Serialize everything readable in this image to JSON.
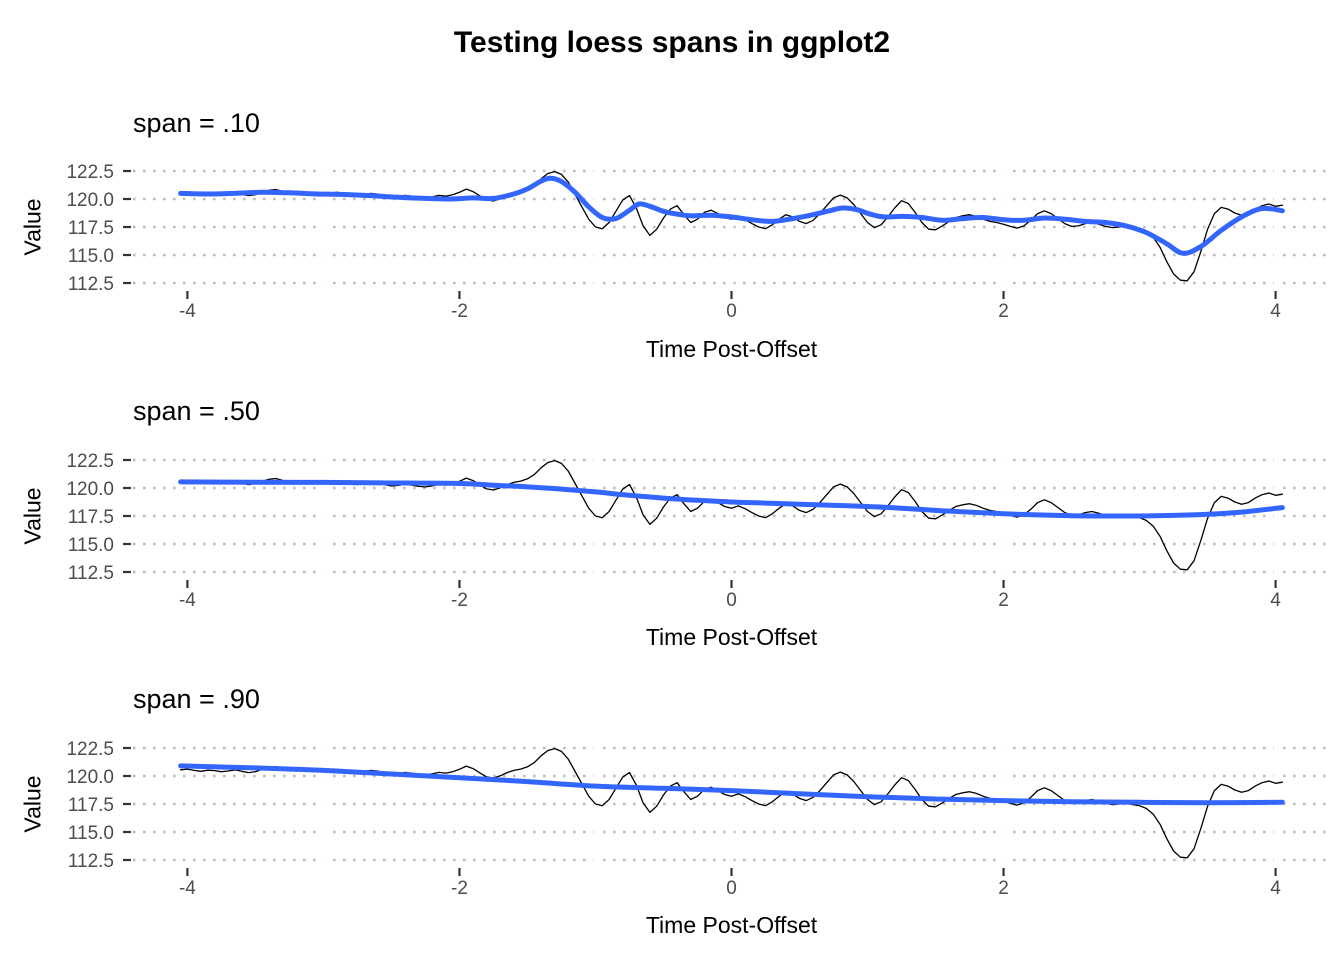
{
  "chart_data": {
    "type": "line",
    "title": "Testing loess spans in ggplot2",
    "xlabel": "Time Post-Offset",
    "ylabel": "Value",
    "xlim": [
      -4.4,
      4.4
    ],
    "ylim": [
      112.2,
      122.95
    ],
    "xticks": [
      {
        "value": -4,
        "label": "-4"
      },
      {
        "value": -2,
        "label": "-2"
      },
      {
        "value": 0,
        "label": "0"
      },
      {
        "value": 2,
        "label": "2"
      },
      {
        "value": 4,
        "label": "4"
      }
    ],
    "xminor": [
      -3,
      -1,
      1,
      3
    ],
    "yticks": [
      {
        "value": 112.5,
        "label": "112.5"
      },
      {
        "value": 115.0,
        "label": "115.0"
      },
      {
        "value": 117.5,
        "label": "117.5"
      },
      {
        "value": 120.0,
        "label": "120.0"
      },
      {
        "value": 122.5,
        "label": "122.5"
      }
    ],
    "grid": "dotted horizontal major gridlines, gaps at x tick columns",
    "legend": "none",
    "colors": {
      "raw_line": "#000000",
      "smooth_line": "#3366FF",
      "grid_dots": "#bdbdbd",
      "tick_marks": "#333333",
      "tick_labels": "#4d4d4d",
      "background": "#ffffff"
    },
    "raw_series": {
      "name": "raw noisy signal (same in all panels)",
      "x_start": -4.05,
      "x_step": 0.05,
      "y": [
        120.55,
        120.62,
        120.5,
        120.42,
        120.52,
        120.48,
        120.38,
        120.45,
        120.55,
        120.42,
        120.3,
        120.38,
        120.6,
        120.78,
        120.85,
        120.68,
        120.5,
        120.44,
        120.52,
        120.56,
        120.48,
        120.42,
        120.52,
        120.6,
        120.48,
        120.34,
        120.3,
        120.42,
        120.5,
        120.44,
        120.3,
        120.18,
        120.24,
        120.32,
        120.26,
        120.14,
        120.1,
        120.2,
        120.32,
        120.26,
        120.38,
        120.6,
        120.88,
        120.66,
        120.28,
        119.92,
        119.82,
        120.02,
        120.3,
        120.5,
        120.62,
        120.82,
        121.2,
        121.8,
        122.28,
        122.45,
        122.2,
        121.5,
        120.4,
        119.3,
        118.2,
        117.5,
        117.35,
        117.9,
        118.9,
        119.9,
        120.3,
        119.2,
        117.6,
        116.75,
        117.3,
        118.3,
        119.1,
        119.4,
        118.6,
        117.9,
        118.2,
        118.8,
        119.0,
        118.7,
        118.35,
        118.2,
        118.4,
        118.15,
        117.8,
        117.5,
        117.35,
        117.7,
        118.2,
        118.6,
        118.4,
        118.0,
        117.8,
        118.1,
        118.7,
        119.4,
        120.1,
        120.35,
        120.1,
        119.5,
        118.7,
        117.9,
        117.45,
        117.7,
        118.4,
        119.2,
        119.85,
        119.6,
        118.8,
        117.9,
        117.3,
        117.25,
        117.6,
        118.0,
        118.35,
        118.5,
        118.6,
        118.45,
        118.2,
        118.0,
        117.9,
        117.75,
        117.55,
        117.4,
        117.6,
        118.1,
        118.7,
        118.95,
        118.7,
        118.25,
        117.8,
        117.55,
        117.6,
        117.8,
        117.9,
        117.75,
        117.55,
        117.45,
        117.5,
        117.55,
        117.45,
        117.35,
        117.1,
        116.6,
        115.7,
        114.4,
        113.3,
        112.75,
        112.7,
        113.5,
        115.3,
        117.3,
        118.7,
        119.25,
        119.1,
        118.75,
        118.55,
        118.7,
        119.1,
        119.4,
        119.55,
        119.35,
        119.45
      ]
    },
    "panels": [
      {
        "label": "span = .10",
        "span": 0.1,
        "xlabel": "Time Post-Offset",
        "ylabel": "Value",
        "smooth": {
          "name": "loess span 0.10",
          "points": [
            [
              -4.05,
              120.5
            ],
            [
              -3.85,
              120.45
            ],
            [
              -3.65,
              120.5
            ],
            [
              -3.45,
              120.6
            ],
            [
              -3.25,
              120.55
            ],
            [
              -3.05,
              120.45
            ],
            [
              -2.85,
              120.4
            ],
            [
              -2.65,
              120.3
            ],
            [
              -2.45,
              120.15
            ],
            [
              -2.25,
              120.05
            ],
            [
              -2.05,
              120.0
            ],
            [
              -1.9,
              120.1
            ],
            [
              -1.75,
              120.05
            ],
            [
              -1.6,
              120.45
            ],
            [
              -1.5,
              120.9
            ],
            [
              -1.4,
              121.6
            ],
            [
              -1.33,
              121.85
            ],
            [
              -1.25,
              121.55
            ],
            [
              -1.15,
              120.6
            ],
            [
              -1.05,
              119.3
            ],
            [
              -0.95,
              118.35
            ],
            [
              -0.85,
              118.25
            ],
            [
              -0.75,
              119.0
            ],
            [
              -0.68,
              119.55
            ],
            [
              -0.6,
              119.35
            ],
            [
              -0.5,
              118.9
            ],
            [
              -0.4,
              118.65
            ],
            [
              -0.3,
              118.5
            ],
            [
              -0.15,
              118.55
            ],
            [
              0.0,
              118.4
            ],
            [
              0.15,
              118.15
            ],
            [
              0.3,
              118.0
            ],
            [
              0.45,
              118.25
            ],
            [
              0.6,
              118.6
            ],
            [
              0.72,
              118.95
            ],
            [
              0.82,
              119.2
            ],
            [
              0.92,
              119.05
            ],
            [
              1.02,
              118.65
            ],
            [
              1.12,
              118.4
            ],
            [
              1.25,
              118.45
            ],
            [
              1.4,
              118.35
            ],
            [
              1.55,
              118.1
            ],
            [
              1.7,
              118.25
            ],
            [
              1.85,
              118.35
            ],
            [
              2.0,
              118.15
            ],
            [
              2.15,
              118.1
            ],
            [
              2.3,
              118.3
            ],
            [
              2.45,
              118.2
            ],
            [
              2.6,
              118.0
            ],
            [
              2.75,
              117.9
            ],
            [
              2.9,
              117.6
            ],
            [
              3.05,
              117.0
            ],
            [
              3.2,
              116.0
            ],
            [
              3.32,
              115.15
            ],
            [
              3.45,
              115.75
            ],
            [
              3.6,
              117.2
            ],
            [
              3.75,
              118.4
            ],
            [
              3.9,
              119.15
            ],
            [
              4.05,
              118.95
            ]
          ]
        }
      },
      {
        "label": "span = .50",
        "span": 0.5,
        "xlabel": "Time Post-Offset",
        "ylabel": "Value",
        "smooth": {
          "name": "loess span 0.50",
          "points": [
            [
              -4.05,
              120.55
            ],
            [
              -3.5,
              120.52
            ],
            [
              -3.0,
              120.5
            ],
            [
              -2.5,
              120.45
            ],
            [
              -2.0,
              120.4
            ],
            [
              -1.75,
              120.25
            ],
            [
              -1.5,
              120.1
            ],
            [
              -1.25,
              119.9
            ],
            [
              -1.0,
              119.65
            ],
            [
              -0.75,
              119.35
            ],
            [
              -0.5,
              119.1
            ],
            [
              -0.25,
              118.9
            ],
            [
              0.0,
              118.75
            ],
            [
              0.25,
              118.65
            ],
            [
              0.5,
              118.55
            ],
            [
              0.75,
              118.45
            ],
            [
              1.0,
              118.35
            ],
            [
              1.25,
              118.2
            ],
            [
              1.5,
              118.0
            ],
            [
              1.75,
              117.85
            ],
            [
              2.0,
              117.7
            ],
            [
              2.25,
              117.6
            ],
            [
              2.5,
              117.52
            ],
            [
              2.75,
              117.5
            ],
            [
              3.0,
              117.5
            ],
            [
              3.25,
              117.55
            ],
            [
              3.5,
              117.65
            ],
            [
              3.75,
              117.85
            ],
            [
              4.05,
              118.25
            ]
          ]
        }
      },
      {
        "label": "span = .90",
        "span": 0.9,
        "xlabel": "Time Post-Offset",
        "ylabel": "Value",
        "smooth": {
          "name": "loess span 0.90",
          "points": [
            [
              -4.05,
              120.9
            ],
            [
              -3.5,
              120.72
            ],
            [
              -3.0,
              120.5
            ],
            [
              -2.5,
              120.18
            ],
            [
              -2.0,
              119.85
            ],
            [
              -1.5,
              119.5
            ],
            [
              -1.0,
              119.1
            ],
            [
              -0.5,
              118.9
            ],
            [
              0.0,
              118.7
            ],
            [
              0.5,
              118.42
            ],
            [
              1.0,
              118.15
            ],
            [
              1.5,
              117.95
            ],
            [
              2.0,
              117.8
            ],
            [
              2.5,
              117.7
            ],
            [
              3.0,
              117.65
            ],
            [
              3.5,
              117.62
            ],
            [
              4.05,
              117.65
            ]
          ]
        }
      }
    ]
  }
}
